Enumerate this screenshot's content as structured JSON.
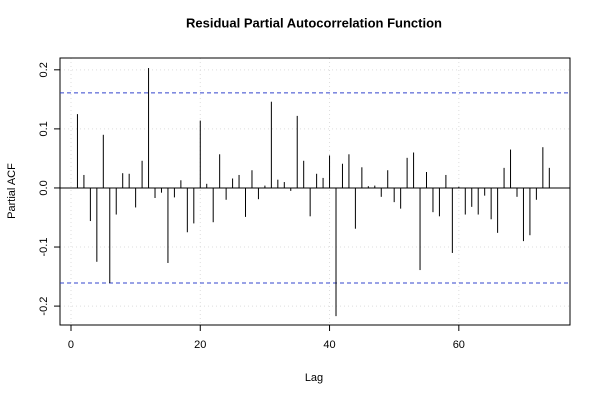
{
  "chart_data": {
    "type": "pacf",
    "title": "Residual Partial Autocorrelation Function",
    "x_label": "Lag",
    "y_label": "Partial ACF",
    "x": [
      1,
      2,
      3,
      4,
      5,
      6,
      7,
      8,
      9,
      10,
      11,
      12,
      13,
      14,
      15,
      16,
      17,
      18,
      19,
      20,
      21,
      22,
      23,
      24,
      25,
      26,
      27,
      28,
      29,
      30,
      31,
      32,
      33,
      34,
      35,
      36,
      37,
      38,
      39,
      40,
      41,
      42,
      43,
      44,
      45,
      46,
      47,
      48,
      49,
      50,
      51,
      52,
      53,
      54,
      55,
      56,
      57,
      58,
      59,
      60,
      61,
      62,
      63,
      64,
      65,
      66,
      67,
      68,
      69,
      70,
      71,
      72,
      73,
      74
    ],
    "values": [
      0.125,
      0.022,
      -0.056,
      -0.125,
      0.09,
      -0.161,
      -0.045,
      0.025,
      0.024,
      -0.033,
      0.046,
      0.203,
      -0.017,
      -0.008,
      -0.127,
      -0.016,
      0.013,
      -0.075,
      -0.06,
      0.114,
      0.007,
      -0.058,
      0.057,
      -0.02,
      0.016,
      0.022,
      -0.049,
      0.03,
      -0.019,
      0.004,
      0.146,
      0.014,
      0.01,
      -0.005,
      0.122,
      0.046,
      -0.048,
      0.024,
      0.017,
      0.055,
      -0.217,
      0.041,
      0.057,
      -0.069,
      0.035,
      0.003,
      0.004,
      -0.015,
      0.03,
      -0.024,
      -0.035,
      0.051,
      0.06,
      -0.139,
      0.027,
      -0.041,
      -0.048,
      0.022,
      -0.11,
      0.002,
      -0.045,
      -0.032,
      -0.045,
      -0.013,
      -0.053,
      -0.076,
      0.034,
      0.065,
      -0.015,
      -0.09,
      -0.08,
      -0.02,
      0.069,
      0.034
    ],
    "color": "#000000",
    "ci_color": "#3344cc",
    "ci_lines": [
      0.161,
      -0.161
    ],
    "xlim": [
      -1.7,
      77.2
    ],
    "ylim": [
      -0.232,
      0.22
    ],
    "xticks": [
      0,
      20,
      40,
      60
    ],
    "yticks": [
      -0.2,
      -0.1,
      {
        "value": 0,
        "label": "0.0"
      },
      0.1,
      0.2
    ],
    "grid": true
  }
}
